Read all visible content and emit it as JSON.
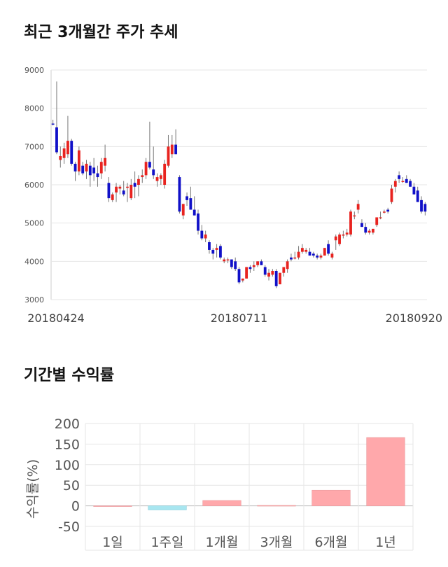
{
  "sections": {
    "price_title": "최근 3개월간 주가 추세",
    "return_title": "기간별 수익률"
  },
  "colors": {
    "up": "#e8231f",
    "down": "#1010c8",
    "wick": "#777777",
    "grid": "#e6e6e6",
    "bar_positive": "#ffa8ab",
    "bar_negative": "#a8e6f0"
  },
  "chart_data": [
    {
      "type": "candlestick",
      "title": "최근 3개월간 주가 추세",
      "ylim": [
        3000,
        9000
      ],
      "yticks": [
        3000,
        4000,
        5000,
        6000,
        7000,
        8000,
        9000
      ],
      "x_tick_labels": [
        "20180424",
        "20180711",
        "20180920"
      ],
      "grid": true,
      "candles": [
        [
          7600,
          7700,
          7550,
          7580
        ],
        [
          7500,
          8700,
          6800,
          6850
        ],
        [
          6650,
          7000,
          6450,
          6750
        ],
        [
          6700,
          7100,
          6550,
          6950
        ],
        [
          6800,
          7800,
          6700,
          7150
        ],
        [
          7150,
          7200,
          6500,
          6550
        ],
        [
          6550,
          6600,
          6100,
          6350
        ],
        [
          6350,
          7000,
          6250,
          6900
        ],
        [
          6500,
          6600,
          6250,
          6300
        ],
        [
          6350,
          6650,
          6150,
          6550
        ],
        [
          6500,
          6600,
          5950,
          6250
        ],
        [
          6450,
          6700,
          6100,
          6300
        ],
        [
          6300,
          6500,
          5950,
          6200
        ],
        [
          6300,
          6700,
          6150,
          6600
        ],
        [
          6500,
          7050,
          6350,
          6700
        ],
        [
          6050,
          6200,
          5550,
          5650
        ],
        [
          5600,
          5800,
          5550,
          5750
        ],
        [
          5800,
          6050,
          5550,
          5950
        ],
        [
          5900,
          6000,
          5750,
          5950
        ],
        [
          5850,
          6100,
          5700,
          5750
        ],
        [
          5950,
          6050,
          5550,
          5950
        ],
        [
          5650,
          6150,
          5600,
          6000
        ],
        [
          6050,
          6350,
          5650,
          5950
        ],
        [
          6000,
          6250,
          5700,
          6150
        ],
        [
          6200,
          6400,
          6050,
          6250
        ],
        [
          6250,
          6700,
          6150,
          6600
        ],
        [
          6600,
          7650,
          6400,
          6450
        ],
        [
          6400,
          7000,
          6150,
          6250
        ],
        [
          6100,
          6300,
          5950,
          6200
        ],
        [
          6150,
          6300,
          6000,
          6250
        ],
        [
          6000,
          6650,
          5900,
          6550
        ],
        [
          6500,
          7300,
          6450,
          7000
        ],
        [
          6800,
          7300,
          6700,
          7050
        ],
        [
          7050,
          7450,
          6800,
          6800
        ],
        [
          6200,
          6250,
          5250,
          5300
        ],
        [
          5200,
          5500,
          5100,
          5500
        ],
        [
          5700,
          5800,
          5450,
          5600
        ],
        [
          5650,
          5950,
          5350,
          5350
        ],
        [
          5350,
          5700,
          5200,
          5200
        ],
        [
          5250,
          5350,
          4700,
          4800
        ],
        [
          4800,
          4950,
          4550,
          4600
        ],
        [
          4600,
          4800,
          4500,
          4700
        ],
        [
          4500,
          4550,
          4200,
          4300
        ],
        [
          4300,
          4350,
          4050,
          4200
        ],
        [
          4300,
          4450,
          4100,
          4350
        ],
        [
          4400,
          4450,
          4050,
          4100
        ],
        [
          4000,
          4100,
          3950,
          4050
        ],
        [
          4050,
          4100,
          3950,
          4050
        ],
        [
          4050,
          4050,
          3800,
          3850
        ],
        [
          4000,
          4100,
          3750,
          3800
        ],
        [
          3800,
          3850,
          3400,
          3450
        ],
        [
          3500,
          3550,
          3450,
          3550
        ],
        [
          3550,
          3850,
          3550,
          3850
        ],
        [
          3850,
          3900,
          3700,
          3800
        ],
        [
          3850,
          4000,
          3750,
          3900
        ],
        [
          3900,
          4000,
          3850,
          4000
        ],
        [
          4000,
          4050,
          3900,
          3900
        ],
        [
          3850,
          3900,
          3600,
          3650
        ],
        [
          3600,
          3800,
          3500,
          3700
        ],
        [
          3650,
          3800,
          3600,
          3750
        ],
        [
          3750,
          3800,
          3300,
          3350
        ],
        [
          3400,
          3700,
          3400,
          3700
        ],
        [
          3700,
          3850,
          3600,
          3850
        ],
        [
          3800,
          4050,
          3700,
          4000
        ],
        [
          4100,
          4200,
          4000,
          4050
        ],
        [
          4100,
          4250,
          4050,
          4100
        ],
        [
          4100,
          4400,
          4050,
          4250
        ],
        [
          4250,
          4450,
          4200,
          4350
        ],
        [
          4250,
          4350,
          4200,
          4300
        ],
        [
          4250,
          4350,
          4150,
          4150
        ],
        [
          4200,
          4250,
          4100,
          4150
        ],
        [
          4150,
          4200,
          4050,
          4100
        ],
        [
          4100,
          4200,
          4050,
          4150
        ],
        [
          4150,
          4350,
          4150,
          4350
        ],
        [
          4450,
          4550,
          4150,
          4200
        ],
        [
          4100,
          4250,
          4050,
          4200
        ],
        [
          4550,
          4700,
          4300,
          4650
        ],
        [
          4450,
          4750,
          4400,
          4700
        ],
        [
          4700,
          4800,
          4600,
          4700
        ],
        [
          4700,
          4850,
          4650,
          4750
        ],
        [
          4700,
          5350,
          4650,
          5300
        ],
        [
          5200,
          5300,
          5100,
          5200
        ],
        [
          5350,
          5600,
          5250,
          5500
        ],
        [
          5000,
          5100,
          4900,
          4900
        ],
        [
          4900,
          5000,
          4700,
          4750
        ],
        [
          4750,
          4850,
          4700,
          4800
        ],
        [
          4750,
          4850,
          4700,
          4850
        ],
        [
          4950,
          5150,
          4900,
          5150
        ],
        [
          5150,
          5300,
          5100,
          5150
        ],
        [
          5300,
          5350,
          5250,
          5300
        ],
        [
          5350,
          5400,
          5250,
          5300
        ],
        [
          5550,
          6000,
          5500,
          5900
        ],
        [
          5950,
          6150,
          5800,
          6100
        ],
        [
          6250,
          6350,
          6050,
          6150
        ],
        [
          6100,
          6200,
          6050,
          6100
        ],
        [
          6150,
          6250,
          6050,
          6050
        ],
        [
          6100,
          6150,
          5950,
          5950
        ],
        [
          5950,
          6050,
          5750,
          5750
        ],
        [
          5850,
          5950,
          5550,
          5550
        ],
        [
          5600,
          5700,
          5250,
          5300
        ],
        [
          5500,
          5550,
          5200,
          5300
        ]
      ]
    },
    {
      "type": "bar",
      "title": "기간별 수익률",
      "ylabel": "수익률(%)",
      "ylim": [
        -50,
        200
      ],
      "yticks": [
        200,
        150,
        100,
        50,
        0,
        -50
      ],
      "categories": [
        "1일",
        "1주일",
        "1개월",
        "3개월",
        "6개월",
        "1년"
      ],
      "values": [
        0,
        -10,
        13,
        1,
        38,
        166
      ]
    }
  ]
}
